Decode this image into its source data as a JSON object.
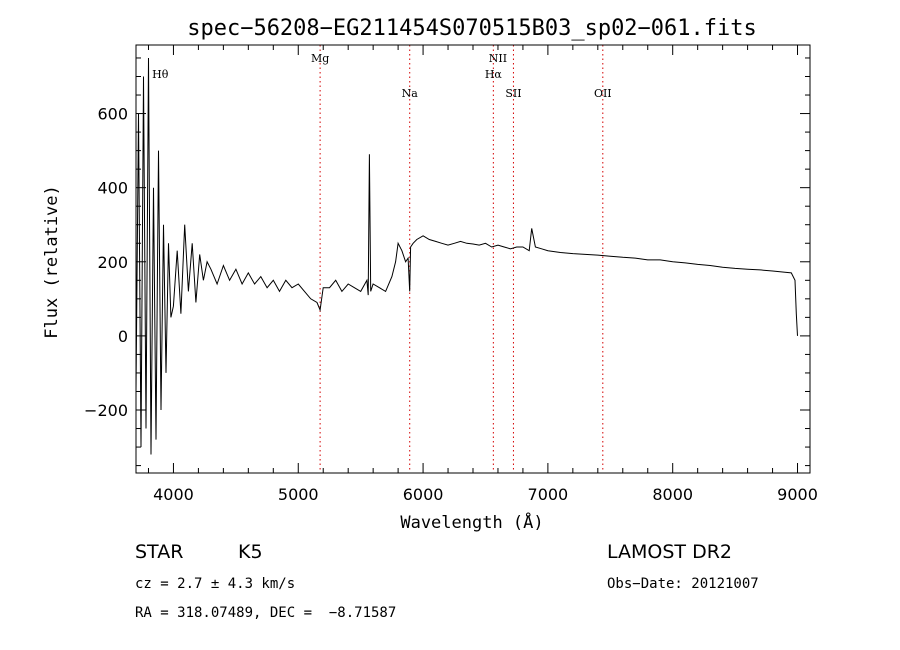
{
  "chart_data": {
    "type": "line",
    "title": "spec−56208−EG211454S070515B03_sp02−061.fits",
    "xlabel": "Wavelength (Å)",
    "ylabel": "Flux (relative)",
    "xlim": [
      3700,
      9100
    ],
    "ylim": [
      -370,
      785
    ],
    "x_ticks": [
      4000,
      5000,
      6000,
      7000,
      8000,
      9000
    ],
    "x_tick_labels": [
      "4000",
      "5000",
      "6000",
      "7000",
      "8000",
      "9000"
    ],
    "y_ticks": [
      -200,
      0,
      200,
      400,
      600
    ],
    "y_tick_labels": [
      "−200",
      "0",
      "200",
      "400",
      "600"
    ],
    "lines": [
      {
        "id": "htheta",
        "label": "Hθ",
        "wavelength": 3798
      },
      {
        "id": "mg",
        "label": "Mg",
        "wavelength": 5175
      },
      {
        "id": "na",
        "label": "Na",
        "wavelength": 5893
      },
      {
        "id": "nii",
        "label": "NII",
        "wavelength": 6584
      },
      {
        "id": "halpha",
        "label": "Hα",
        "wavelength": 6563
      },
      {
        "id": "sii",
        "label": "SII",
        "wavelength": 6724
      },
      {
        "id": "oii",
        "label": "OII",
        "wavelength": 7440
      }
    ],
    "series": [
      {
        "name": "flux",
        "x": [
          3700,
          3720,
          3740,
          3760,
          3780,
          3800,
          3820,
          3840,
          3860,
          3880,
          3900,
          3920,
          3940,
          3960,
          3980,
          4000,
          4030,
          4060,
          4090,
          4120,
          4150,
          4180,
          4210,
          4240,
          4270,
          4300,
          4350,
          4400,
          4450,
          4500,
          4550,
          4600,
          4650,
          4700,
          4750,
          4800,
          4850,
          4900,
          4950,
          5000,
          5050,
          5100,
          5150,
          5175,
          5200,
          5250,
          5300,
          5350,
          5400,
          5450,
          5500,
          5550,
          5560,
          5570,
          5580,
          5600,
          5650,
          5700,
          5750,
          5780,
          5800,
          5830,
          5860,
          5880,
          5893,
          5900,
          5920,
          5950,
          6000,
          6050,
          6100,
          6150,
          6200,
          6250,
          6300,
          6350,
          6400,
          6450,
          6500,
          6550,
          6600,
          6650,
          6700,
          6750,
          6800,
          6850,
          6870,
          6900,
          6950,
          7000,
          7100,
          7200,
          7300,
          7400,
          7500,
          7600,
          7700,
          7800,
          7900,
          8000,
          8100,
          8200,
          8300,
          8400,
          8500,
          8600,
          8700,
          8800,
          8900,
          8950,
          8980,
          8990,
          9000
        ],
        "y": [
          -150,
          600,
          -300,
          700,
          -250,
          750,
          -320,
          400,
          -280,
          500,
          -200,
          300,
          -100,
          250,
          50,
          80,
          230,
          60,
          300,
          120,
          250,
          90,
          220,
          150,
          200,
          180,
          140,
          190,
          150,
          180,
          140,
          170,
          140,
          160,
          130,
          150,
          120,
          150,
          130,
          140,
          120,
          100,
          90,
          70,
          130,
          130,
          150,
          120,
          140,
          130,
          120,
          150,
          110,
          490,
          120,
          140,
          130,
          120,
          160,
          200,
          250,
          230,
          200,
          210,
          120,
          240,
          250,
          260,
          270,
          260,
          255,
          250,
          245,
          250,
          255,
          250,
          248,
          245,
          250,
          240,
          245,
          240,
          235,
          240,
          240,
          230,
          290,
          240,
          235,
          230,
          225,
          222,
          220,
          218,
          215,
          212,
          210,
          205,
          205,
          200,
          197,
          193,
          190,
          185,
          182,
          180,
          178,
          175,
          172,
          170,
          150,
          60,
          0
        ]
      }
    ]
  },
  "info": {
    "object_type": "STAR",
    "subclass": "K5",
    "cz": "cz = 2.7 ± 4.3 km/s",
    "coords": "RA = 318.07489, DEC =  −8.71587",
    "survey": "LAMOST DR2",
    "obs_date": "Obs−Date: 20121007"
  }
}
